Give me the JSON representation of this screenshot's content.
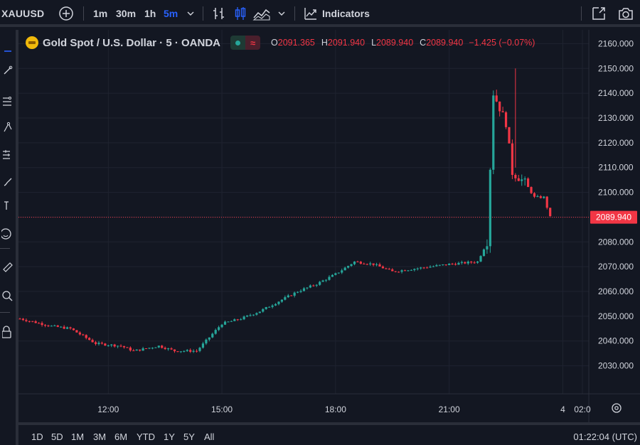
{
  "toolbar": {
    "symbol": "XAUUSD",
    "intervals": [
      "1m",
      "30m",
      "1h",
      "5m"
    ],
    "active_interval": "5m",
    "indicators_label": "Indicators",
    "icons": [
      "add-symbol-icon",
      "chevron-down-icon",
      "bar-style-icon",
      "candles-icon",
      "area-icon",
      "chevron-down-icon",
      "indicators-icon",
      "fullscreen-icon",
      "camera-icon"
    ]
  },
  "left_tools": [
    "cursor-icon",
    "trend-line-icon",
    "fib-icon",
    "pattern-icon",
    "forecast-icon",
    "brush-icon",
    "text-icon",
    "emoji-icon",
    "ruler-icon",
    "zoom-icon",
    "lock-icon"
  ],
  "legend": {
    "title": "Gold Spot / U.S. Dollar · 5 · OANDA",
    "open_label": "O",
    "open": "2091.365",
    "high_label": "H",
    "high": "2091.940",
    "low_label": "L",
    "low": "2089.940",
    "close_label": "C",
    "close": "2089.940",
    "change": "−1.425 (−0.07%)",
    "colors": {
      "up": "#26a69a",
      "down": "#f23645",
      "accent": "#2962ff"
    }
  },
  "price_axis": {
    "ticks": [
      "2160.000",
      "2150.000",
      "2140.000",
      "2130.000",
      "2120.000",
      "2110.000",
      "2100.000",
      "2090.000",
      "2080.000",
      "2070.000",
      "2060.000",
      "2050.000",
      "2040.000",
      "2030.000"
    ],
    "last_price": "2089.940"
  },
  "time_axis": {
    "ticks": [
      "12:00",
      "15:00",
      "18:00",
      "21:00",
      "4",
      "02:0"
    ]
  },
  "bottom": {
    "ranges": [
      "1D",
      "5D",
      "1M",
      "3M",
      "6M",
      "YTD",
      "1Y",
      "5Y",
      "All"
    ],
    "clock": "01:22:04 (UTC)"
  },
  "chart_data": {
    "type": "candlestick",
    "symbol": "XAUUSD",
    "y_range": [
      2025,
      2165
    ],
    "last_price": 2089.94,
    "anchors": [
      {
        "t": "09:40",
        "p": 2049
      },
      {
        "t": "10:30",
        "p": 2046
      },
      {
        "t": "11:00",
        "p": 2045
      },
      {
        "t": "11:40",
        "p": 2039
      },
      {
        "t": "12:20",
        "p": 2038
      },
      {
        "t": "12:40",
        "p": 2036
      },
      {
        "t": "13:20",
        "p": 2038
      },
      {
        "t": "13:45",
        "p": 2036
      },
      {
        "t": "14:20",
        "p": 2036
      },
      {
        "t": "15:00",
        "p": 2047
      },
      {
        "t": "15:30",
        "p": 2049
      },
      {
        "t": "16:00",
        "p": 2052
      },
      {
        "t": "16:30",
        "p": 2056
      },
      {
        "t": "17:00",
        "p": 2060
      },
      {
        "t": "17:30",
        "p": 2063
      },
      {
        "t": "18:00",
        "p": 2067
      },
      {
        "t": "18:30",
        "p": 2072
      },
      {
        "t": "19:00",
        "p": 2071
      },
      {
        "t": "19:30",
        "p": 2068
      },
      {
        "t": "20:00",
        "p": 2069
      },
      {
        "t": "20:30",
        "p": 2070
      },
      {
        "t": "21:00",
        "p": 2071
      },
      {
        "t": "21:45",
        "p": 2072
      },
      {
        "t": "22:00",
        "p": 2080
      },
      {
        "t": "22:10",
        "p": 2140
      },
      {
        "t": "22:30",
        "p": 2128
      },
      {
        "t": "22:40",
        "p": 2108
      },
      {
        "t": "23:00",
        "p": 2104
      },
      {
        "t": "23:15",
        "p": 2098
      },
      {
        "t": "23:30",
        "p": 2098
      },
      {
        "t": "23:40",
        "p": 2090
      }
    ]
  }
}
